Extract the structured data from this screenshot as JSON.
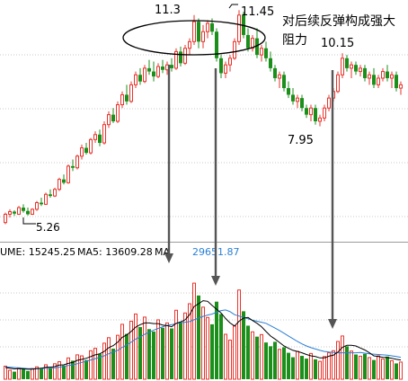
{
  "chart_data": [
    {
      "type": "candlestick",
      "title": "",
      "price_annotations": [
        {
          "label": "11.3"
        },
        {
          "label": "11.45"
        },
        {
          "label": "10.15"
        },
        {
          "label": "7.95"
        },
        {
          "label": "5.26"
        }
      ],
      "annotation_text": "对后续反弹构成强大阻力",
      "ylim": [
        4.5,
        11.7
      ],
      "grid": true,
      "colors": {
        "up": "#e8342c",
        "down": "#1a8f1a",
        "background": "#ffffff",
        "grid": "#c8c8c8"
      },
      "candles": [
        [
          5.05,
          5.35,
          5.0,
          5.3
        ],
        [
          5.3,
          5.45,
          5.2,
          5.38
        ],
        [
          5.38,
          5.42,
          5.25,
          5.32
        ],
        [
          5.3,
          5.55,
          5.28,
          5.5
        ],
        [
          5.5,
          5.6,
          5.35,
          5.4
        ],
        [
          5.4,
          5.5,
          5.26,
          5.3
        ],
        [
          5.3,
          5.48,
          5.28,
          5.45
        ],
        [
          5.45,
          5.7,
          5.4,
          5.65
        ],
        [
          5.65,
          5.8,
          5.55,
          5.6
        ],
        [
          5.6,
          5.95,
          5.58,
          5.9
        ],
        [
          5.9,
          6.05,
          5.8,
          5.85
        ],
        [
          5.85,
          6.1,
          5.82,
          6.05
        ],
        [
          6.05,
          6.4,
          6.0,
          6.35
        ],
        [
          6.35,
          6.5,
          6.2,
          6.25
        ],
        [
          6.25,
          6.8,
          6.22,
          6.75
        ],
        [
          6.75,
          6.95,
          6.6,
          6.7
        ],
        [
          6.7,
          7.1,
          6.65,
          7.05
        ],
        [
          7.05,
          7.4,
          6.95,
          7.3
        ],
        [
          7.3,
          7.45,
          7.1,
          7.15
        ],
        [
          7.15,
          7.6,
          7.1,
          7.55
        ],
        [
          7.55,
          7.8,
          7.45,
          7.7
        ],
        [
          7.7,
          7.85,
          7.35,
          7.45
        ],
        [
          7.45,
          8.1,
          7.4,
          8.0
        ],
        [
          8.0,
          8.4,
          7.9,
          8.3
        ],
        [
          8.3,
          8.5,
          8.05,
          8.1
        ],
        [
          8.1,
          8.7,
          8.05,
          8.6
        ],
        [
          8.6,
          9.0,
          8.5,
          8.9
        ],
        [
          8.9,
          9.2,
          8.6,
          8.7
        ],
        [
          8.7,
          9.3,
          8.65,
          9.2
        ],
        [
          9.2,
          9.6,
          9.1,
          9.5
        ],
        [
          9.5,
          9.7,
          9.2,
          9.3
        ],
        [
          9.3,
          9.8,
          9.25,
          9.7
        ],
        [
          9.7,
          9.95,
          9.5,
          9.6
        ],
        [
          9.6,
          9.9,
          9.3,
          9.45
        ],
        [
          9.45,
          9.85,
          9.4,
          9.75
        ],
        [
          9.75,
          9.95,
          9.55,
          9.65
        ],
        [
          9.65,
          9.9,
          9.5,
          9.8
        ],
        [
          9.8,
          10.0,
          9.6,
          9.7
        ],
        [
          9.7,
          10.3,
          9.65,
          10.2
        ],
        [
          10.2,
          10.35,
          9.75,
          9.85
        ],
        [
          9.85,
          10.4,
          9.8,
          10.3
        ],
        [
          10.3,
          10.6,
          10.1,
          10.5
        ],
        [
          10.5,
          11.3,
          10.4,
          11.1
        ],
        [
          11.1,
          11.2,
          10.3,
          10.5
        ],
        [
          10.5,
          11.0,
          10.3,
          10.8
        ],
        [
          10.8,
          11.15,
          10.6,
          11.05
        ],
        [
          11.05,
          11.2,
          10.7,
          10.8
        ],
        [
          10.8,
          10.9,
          9.9,
          10.0
        ],
        [
          10.0,
          10.1,
          9.4,
          9.55
        ],
        [
          9.55,
          9.9,
          9.4,
          9.8
        ],
        [
          9.8,
          10.1,
          9.6,
          10.0
        ],
        [
          10.0,
          10.6,
          9.95,
          10.5
        ],
        [
          10.5,
          11.45,
          10.4,
          11.3
        ],
        [
          11.3,
          11.4,
          10.6,
          10.7
        ],
        [
          10.7,
          10.9,
          10.2,
          10.3
        ],
        [
          10.3,
          10.7,
          10.2,
          10.6
        ],
        [
          10.6,
          10.9,
          10.0,
          10.1
        ],
        [
          10.1,
          10.4,
          9.9,
          10.3
        ],
        [
          10.3,
          10.5,
          9.9,
          10.0
        ],
        [
          10.0,
          10.2,
          9.6,
          9.7
        ],
        [
          9.7,
          9.8,
          9.3,
          9.4
        ],
        [
          9.4,
          9.6,
          9.1,
          9.5
        ],
        [
          9.5,
          9.6,
          9.0,
          9.1
        ],
        [
          9.1,
          9.3,
          8.8,
          8.9
        ],
        [
          8.9,
          9.1,
          8.6,
          8.7
        ],
        [
          8.7,
          8.9,
          8.5,
          8.8
        ],
        [
          8.8,
          8.9,
          8.4,
          8.5
        ],
        [
          8.5,
          8.6,
          8.2,
          8.3
        ],
        [
          8.3,
          8.6,
          8.1,
          8.5
        ],
        [
          8.5,
          8.6,
          8.0,
          8.1
        ],
        [
          8.1,
          8.3,
          7.95,
          8.2
        ],
        [
          8.2,
          8.6,
          8.1,
          8.5
        ],
        [
          8.5,
          8.9,
          8.4,
          8.8
        ],
        [
          8.8,
          9.1,
          8.7,
          9.0
        ],
        [
          9.0,
          9.6,
          8.95,
          9.5
        ],
        [
          9.5,
          10.15,
          9.4,
          10.0
        ],
        [
          10.0,
          10.1,
          9.6,
          9.7
        ],
        [
          9.7,
          9.9,
          9.4,
          9.8
        ],
        [
          9.8,
          9.9,
          9.5,
          9.6
        ],
        [
          9.6,
          9.8,
          9.45,
          9.7
        ],
        [
          9.7,
          9.8,
          9.3,
          9.4
        ],
        [
          9.4,
          9.6,
          9.2,
          9.5
        ],
        [
          9.5,
          9.7,
          9.1,
          9.2
        ],
        [
          9.2,
          9.5,
          9.1,
          9.4
        ],
        [
          9.4,
          9.7,
          9.3,
          9.6
        ],
        [
          9.6,
          9.8,
          9.3,
          9.4
        ],
        [
          9.4,
          9.6,
          9.1,
          9.5
        ],
        [
          9.5,
          9.6,
          9.0,
          9.1
        ],
        [
          9.1,
          9.3,
          8.9,
          9.2
        ]
      ]
    },
    {
      "type": "bar",
      "header": {
        "volume": "UME: 15245.25",
        "ma5": "MA5: 13609.28",
        "ma10_prefix": "MA",
        "ma10_value": "29651.87"
      },
      "colors": {
        "ma5": "#000000",
        "ma10": "#2a7fd4"
      },
      "volumes": [
        3800,
        2600,
        2200,
        3300,
        2900,
        2400,
        3100,
        3600,
        3000,
        4200,
        3300,
        4500,
        5100,
        4000,
        6200,
        5400,
        7100,
        6800,
        5600,
        8300,
        9000,
        7400,
        10500,
        12100,
        8900,
        12800,
        16000,
        13200,
        16900,
        19000,
        15200,
        18100,
        14600,
        13900,
        17300,
        15000,
        16400,
        14800,
        20100,
        16700,
        19300,
        22000,
        28000,
        24400,
        21000,
        18000,
        16000,
        22600,
        19000,
        13100,
        11400,
        15500,
        26000,
        19800,
        15600,
        13800,
        12400,
        13000,
        10700,
        9600,
        10900,
        8700,
        9300,
        7700,
        6400,
        8100,
        6800,
        6000,
        7500,
        5800,
        5200,
        6600,
        7700,
        8300,
        11000,
        12600,
        9600,
        8200,
        7200,
        6700,
        7400,
        6300,
        5600,
        6800,
        5900,
        6600,
        5400,
        4600,
        5000
      ],
      "ma5": [
        3400,
        3200,
        3000,
        3100,
        3000,
        2900,
        2900,
        3100,
        3200,
        3500,
        3500,
        3700,
        4100,
        4200,
        4600,
        4900,
        5500,
        5800,
        6100,
        6600,
        7100,
        7400,
        8100,
        9200,
        9800,
        10800,
        12200,
        12900,
        13900,
        15200,
        15900,
        16400,
        16400,
        16200,
        16200,
        15800,
        15600,
        15300,
        16300,
        16700,
        17300,
        18800,
        21200,
        22000,
        22900,
        22700,
        21500,
        20400,
        19300,
        17700,
        16400,
        15500,
        16900,
        17800,
        18000,
        17100,
        16300,
        15300,
        13900,
        12600,
        11700,
        10700,
        9700,
        9000,
        8400,
        8100,
        7700,
        7200,
        6800,
        6600,
        6200,
        6200,
        6700,
        7000,
        7900,
        9300,
        9900,
        9900,
        9700,
        9100,
        8500,
        7700,
        6800,
        6600,
        6400,
        6300,
        6100,
        5800,
        5600
      ],
      "ma10": [
        3600,
        3500,
        3400,
        3300,
        3200,
        3100,
        3100,
        3100,
        3100,
        3200,
        3200,
        3300,
        3500,
        3700,
        4000,
        4200,
        4500,
        4900,
        5200,
        5600,
        6000,
        6400,
        6800,
        7400,
        7900,
        8400,
        9300,
        10000,
        10800,
        11700,
        12300,
        13100,
        13700,
        14300,
        14800,
        15300,
        15700,
        15900,
        16200,
        16500,
        16600,
        16800,
        17300,
        17800,
        18300,
        18700,
        19000,
        19500,
        20000,
        20200,
        19700,
        18800,
        18400,
        18000,
        17600,
        17200,
        16900,
        16600,
        16300,
        15600,
        14900,
        14200,
        13400,
        12600,
        11800,
        11000,
        10300,
        9700,
        9200,
        8800,
        8400,
        8100,
        7900,
        7800,
        7700,
        7700,
        7700,
        7700,
        7700,
        7800,
        7600,
        7400,
        7300,
        7200,
        7100,
        7000,
        6800,
        6600,
        6400
      ]
    }
  ]
}
